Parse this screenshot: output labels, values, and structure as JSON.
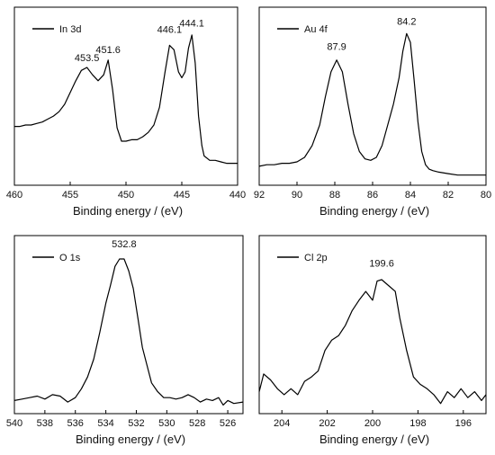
{
  "chart_data": [
    {
      "type": "line",
      "legend": "In 3d",
      "legend_position": "top-left",
      "xlabel": "Binding energy / (eV)",
      "xlim": [
        460,
        440
      ],
      "ylim": [
        0,
        1
      ],
      "grid": false,
      "x_ticks": [
        460,
        455,
        450,
        445,
        440
      ],
      "annotations": [
        {
          "text": "453.5",
          "x": 453.5,
          "y": 0.745
        },
        {
          "text": "451.6",
          "x": 451.6,
          "y": 0.8
        },
        {
          "text": "446.1",
          "x": 446.1,
          "y": 0.935
        },
        {
          "text": "444.1",
          "x": 444.1,
          "y": 0.98
        }
      ],
      "series": [
        {
          "x": [
            460,
            459.5,
            459,
            458.5,
            458,
            457.5,
            457,
            456.5,
            456,
            455.5,
            455,
            454.5,
            454,
            453.5,
            453,
            452.5,
            452,
            451.6,
            451.2,
            450.8,
            450.4,
            450,
            449.5,
            449,
            448.5,
            448,
            447.5,
            447,
            446.5,
            446.1,
            445.7,
            445.3,
            445,
            444.7,
            444.4,
            444.1,
            443.8,
            443.5,
            443.2,
            443,
            442.5,
            442,
            441.5,
            441,
            440.5,
            440
          ],
          "y": [
            0.35,
            0.35,
            0.36,
            0.36,
            0.37,
            0.38,
            0.4,
            0.42,
            0.45,
            0.5,
            0.58,
            0.66,
            0.73,
            0.75,
            0.7,
            0.66,
            0.7,
            0.8,
            0.6,
            0.34,
            0.25,
            0.25,
            0.26,
            0.26,
            0.28,
            0.31,
            0.36,
            0.48,
            0.72,
            0.9,
            0.87,
            0.72,
            0.68,
            0.72,
            0.88,
            0.97,
            0.78,
            0.42,
            0.22,
            0.15,
            0.12,
            0.12,
            0.11,
            0.1,
            0.1,
            0.1
          ]
        }
      ]
    },
    {
      "type": "line",
      "legend": "Au 4f",
      "legend_position": "top-left",
      "xlabel": "Binding energy / (eV)",
      "xlim": [
        92,
        80
      ],
      "ylim": [
        0,
        1
      ],
      "grid": false,
      "x_ticks": [
        92,
        90,
        88,
        86,
        84,
        82,
        80
      ],
      "annotations": [
        {
          "text": "87.9",
          "x": 87.9,
          "y": 0.82
        },
        {
          "text": "84.2",
          "x": 84.2,
          "y": 0.99
        }
      ],
      "series": [
        {
          "x": [
            92,
            91.6,
            91.2,
            90.8,
            90.4,
            90,
            89.6,
            89.2,
            88.8,
            88.5,
            88.2,
            87.9,
            87.6,
            87.3,
            87,
            86.7,
            86.4,
            86.1,
            85.8,
            85.5,
            85.2,
            84.9,
            84.6,
            84.4,
            84.2,
            84,
            83.8,
            83.6,
            83.4,
            83.2,
            83,
            82.8,
            82.5,
            82,
            81.5,
            81,
            80.5,
            80
          ],
          "y": [
            0.08,
            0.09,
            0.09,
            0.1,
            0.1,
            0.11,
            0.14,
            0.22,
            0.36,
            0.55,
            0.72,
            0.8,
            0.72,
            0.5,
            0.3,
            0.18,
            0.13,
            0.12,
            0.14,
            0.22,
            0.36,
            0.5,
            0.68,
            0.86,
            0.98,
            0.92,
            0.66,
            0.38,
            0.18,
            0.09,
            0.06,
            0.05,
            0.04,
            0.03,
            0.02,
            0.02,
            0.02,
            0.02
          ]
        }
      ]
    },
    {
      "type": "line",
      "legend": "O 1s",
      "legend_position": "top-left",
      "xlabel": "Binding energy / (eV)",
      "xlim": [
        540,
        525
      ],
      "ylim": [
        0,
        1
      ],
      "grid": false,
      "x_ticks": [
        540,
        538,
        536,
        534,
        532,
        530,
        528,
        526
      ],
      "annotations": [
        {
          "text": "532.8",
          "x": 532.8,
          "y": 1.03
        }
      ],
      "series": [
        {
          "x": [
            540,
            539.5,
            539,
            538.5,
            538,
            537.5,
            537,
            536.5,
            536,
            535.6,
            535.2,
            534.8,
            534.4,
            534,
            533.7,
            533.4,
            533.1,
            532.8,
            532.5,
            532.2,
            531.9,
            531.6,
            531.3,
            531,
            530.6,
            530.2,
            529.8,
            529.4,
            529,
            528.6,
            528.2,
            527.8,
            527.4,
            527,
            526.6,
            526.3,
            526,
            525.6,
            525
          ],
          "y": [
            0.04,
            0.05,
            0.06,
            0.07,
            0.05,
            0.08,
            0.07,
            0.03,
            0.06,
            0.12,
            0.2,
            0.32,
            0.5,
            0.7,
            0.82,
            0.95,
            1.0,
            1.0,
            0.92,
            0.8,
            0.6,
            0.4,
            0.28,
            0.16,
            0.1,
            0.06,
            0.06,
            0.05,
            0.06,
            0.08,
            0.06,
            0.03,
            0.05,
            0.04,
            0.06,
            0.01,
            0.04,
            0.02,
            0.03
          ]
        }
      ]
    },
    {
      "type": "line",
      "legend": "Cl 2p",
      "legend_position": "top-left",
      "xlabel": "Binding energy / (eV)",
      "xlim": [
        205,
        195
      ],
      "ylim": [
        0,
        1
      ],
      "grid": false,
      "x_ticks": [
        204,
        202,
        200,
        198,
        196
      ],
      "annotations": [
        {
          "text": "199.6",
          "x": 199.6,
          "y": 0.9
        }
      ],
      "series": [
        {
          "x": [
            205,
            204.8,
            204.5,
            204.2,
            203.9,
            203.6,
            203.3,
            203,
            202.7,
            202.4,
            202.1,
            201.8,
            201.5,
            201.2,
            200.9,
            200.6,
            200.3,
            200,
            199.8,
            199.6,
            199.3,
            199,
            198.8,
            198.5,
            198.2,
            197.9,
            197.6,
            197.3,
            197,
            196.7,
            196.4,
            196.1,
            195.8,
            195.5,
            195.2,
            195
          ],
          "y": [
            0.1,
            0.22,
            0.18,
            0.12,
            0.08,
            0.12,
            0.08,
            0.17,
            0.2,
            0.24,
            0.38,
            0.45,
            0.48,
            0.55,
            0.65,
            0.72,
            0.78,
            0.72,
            0.85,
            0.86,
            0.82,
            0.78,
            0.6,
            0.38,
            0.2,
            0.15,
            0.12,
            0.08,
            0.02,
            0.1,
            0.06,
            0.12,
            0.06,
            0.1,
            0.04,
            0.08
          ]
        }
      ]
    }
  ]
}
